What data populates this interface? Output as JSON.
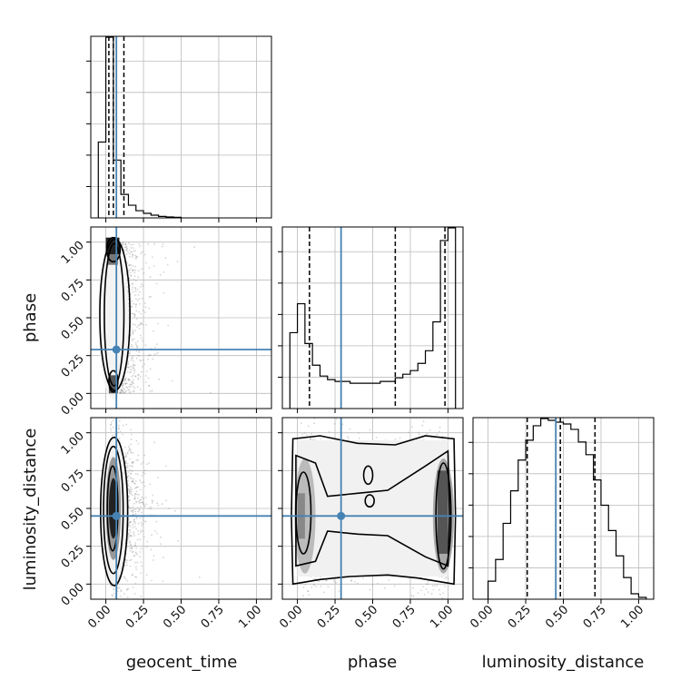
{
  "chart_data": {
    "type": "corner",
    "parameters": [
      "geocent_time",
      "phase",
      "luminosity_distance"
    ],
    "truth": {
      "geocent_time": 0.07,
      "phase": 0.29,
      "luminosity_distance": 0.45
    },
    "quantiles": {
      "geocent_time": [
        0.02,
        0.05,
        0.12
      ],
      "phase": [
        0.08,
        0.65,
        0.98
      ],
      "luminosity_distance": [
        0.26,
        0.48,
        0.71
      ]
    },
    "axis_range": [
      -0.1,
      1.1
    ],
    "grid": true,
    "histograms": {
      "geocent_time": {
        "bins": [
          -0.05,
          0.0,
          0.05,
          0.1,
          0.15,
          0.2,
          0.25,
          0.3,
          0.35,
          0.4,
          0.45,
          0.5
        ],
        "counts": [
          0.42,
          1.0,
          0.32,
          0.13,
          0.07,
          0.04,
          0.025,
          0.015,
          0.008,
          0.005,
          0.003
        ]
      },
      "phase": {
        "bins": [
          -0.05,
          0.0,
          0.05,
          0.1,
          0.15,
          0.2,
          0.25,
          0.3,
          0.35,
          0.4,
          0.45,
          0.5,
          0.55,
          0.6,
          0.65,
          0.7,
          0.75,
          0.8,
          0.85,
          0.9,
          0.95,
          1.0,
          1.05
        ],
        "counts": [
          0.42,
          0.58,
          0.36,
          0.24,
          0.18,
          0.16,
          0.15,
          0.15,
          0.14,
          0.14,
          0.14,
          0.14,
          0.15,
          0.15,
          0.17,
          0.19,
          0.21,
          0.25,
          0.32,
          0.48,
          0.93,
          1.0
        ]
      },
      "luminosity_distance": {
        "bins": [
          0.0,
          0.05,
          0.1,
          0.15,
          0.2,
          0.25,
          0.3,
          0.35,
          0.4,
          0.45,
          0.5,
          0.55,
          0.6,
          0.65,
          0.7,
          0.75,
          0.8,
          0.85,
          0.9,
          0.95,
          1.0,
          1.05
        ],
        "counts": [
          0.1,
          0.22,
          0.42,
          0.6,
          0.77,
          0.88,
          0.96,
          1.0,
          0.99,
          0.98,
          0.97,
          0.94,
          0.87,
          0.8,
          0.66,
          0.52,
          0.38,
          0.24,
          0.12,
          0.03,
          0.01
        ]
      }
    },
    "ticks": {
      "geocent_time": [
        "0.00",
        "0.25",
        "0.50",
        "0.75",
        "1.00"
      ],
      "phase": [
        "0.00",
        "0.25",
        "0.50",
        "0.75",
        "1.00"
      ],
      "luminosity_distance": [
        "0.00",
        "0.25",
        "0.50",
        "0.75",
        "1.00"
      ]
    },
    "axis_labels": {
      "x": [
        "geocent_time",
        "phase",
        "luminosity_distance"
      ],
      "y": [
        "phase",
        "luminosity_distance"
      ]
    }
  },
  "colors": {
    "truth": "#4682b4",
    "contour": "#000000",
    "grid": "#bbbbbb",
    "points": "#888888"
  }
}
